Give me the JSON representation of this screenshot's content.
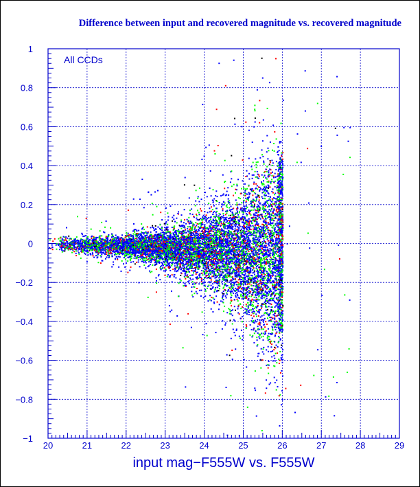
{
  "chart_data": {
    "type": "scatter",
    "title": "Difference between input and recovered magnitude vs. recovered magnitude",
    "xlabel": "input mag−F555W vs. F555W",
    "ylabel": "",
    "annotation": "All CCDs",
    "xlim": [
      20,
      29
    ],
    "ylim": [
      -1,
      1
    ],
    "x_ticks": [
      "20",
      "21",
      "22",
      "23",
      "24",
      "25",
      "26",
      "27",
      "28",
      "29"
    ],
    "y_ticks": [
      "1",
      "0.8",
      "0.6",
      "0.4",
      "0.2",
      "0",
      "−0.2",
      "−0.4",
      "−0.6",
      "−0.8",
      "−1"
    ],
    "grid": true,
    "detection_limit_x": 26,
    "series": [
      {
        "color": "#0000ff"
      },
      {
        "color": "#00ff00"
      },
      {
        "color": "#ff0000"
      },
      {
        "color": "#000000"
      }
    ],
    "scatter_model": {
      "mean_offset": [
        [
          20,
          0.0
        ],
        [
          22,
          -0.01
        ],
        [
          24,
          -0.03
        ],
        [
          25,
          -0.05
        ],
        [
          25.9,
          -0.06
        ]
      ],
      "spread": [
        [
          20,
          0.015
        ],
        [
          21,
          0.022
        ],
        [
          22,
          0.03
        ],
        [
          23,
          0.05
        ],
        [
          24,
          0.09
        ],
        [
          25,
          0.16
        ],
        [
          25.5,
          0.22
        ],
        [
          25.9,
          0.28
        ]
      ]
    }
  }
}
